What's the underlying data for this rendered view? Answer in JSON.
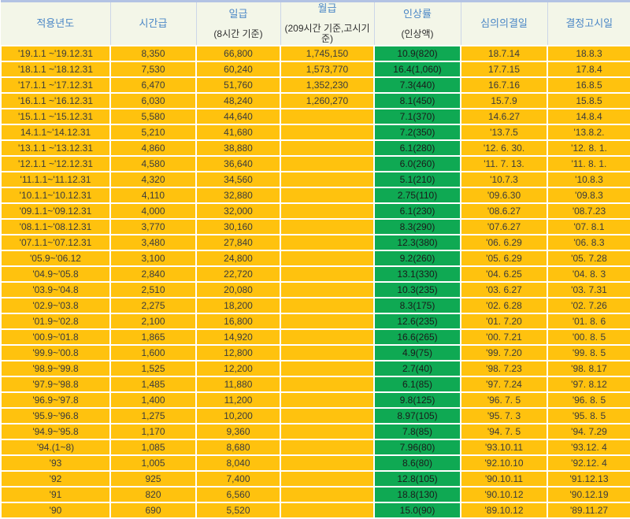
{
  "colors": {
    "row_bg": "#ffc20e",
    "rate_col_bg": "#0fa953",
    "header_bg": "#f3f6e8",
    "header_text": "#4b87c6",
    "cell_text": "#3b3b3b",
    "grid_border": "#ffffff",
    "header_top_border": "#b3c3e3"
  },
  "chart_data": {
    "type": "table",
    "columns": [
      {
        "label": "적용년도",
        "sub": ""
      },
      {
        "label": "시간급",
        "sub": ""
      },
      {
        "label": "일급",
        "sub": "(8시간 기준)"
      },
      {
        "label": "월급",
        "sub": "(209시간 기준,고시기준)"
      },
      {
        "label": "인상률",
        "sub": "(인상액)"
      },
      {
        "label": "심의의결일",
        "sub": ""
      },
      {
        "label": "결정고시일",
        "sub": ""
      }
    ],
    "rows": [
      [
        "'19.1.1 ~'19.12.31",
        "8,350",
        "66,800",
        "1,745,150",
        "10.9(820)",
        "18.7.14",
        "18.8.3"
      ],
      [
        "'18.1.1 ~'18.12.31",
        "7,530",
        "60,240",
        "1,573,770",
        "16.4(1,060)",
        "17.7.15",
        "17.8.4"
      ],
      [
        "'17.1.1 ~'17.12.31",
        "6,470",
        "51,760",
        "1,352,230",
        "7.3(440)",
        "16.7.16",
        "16.8.5"
      ],
      [
        "'16.1.1 ~'16.12.31",
        "6,030",
        "48,240",
        "1,260,270",
        "8.1(450)",
        "15.7.9",
        "15.8.5"
      ],
      [
        "'15.1.1 ~'15.12.31",
        "5,580",
        "44,640",
        "",
        "7.1(370)",
        "14.6.27",
        "14.8.4"
      ],
      [
        "14.1.1~'14.12.31",
        "5,210",
        "41,680",
        "",
        "7.2(350)",
        "'13.7.5",
        "'13.8.2."
      ],
      [
        "'13.1.1 ~'13.12.31",
        "4,860",
        "38,880",
        "",
        "6.1(280)",
        "'12. 6. 30.",
        "'12. 8. 1."
      ],
      [
        "'12.1.1 ~'12.12.31",
        "4,580",
        "36,640",
        "",
        "6.0(260)",
        "'11. 7. 13.",
        "'11. 8. 1."
      ],
      [
        "'11.1.1~'11.12.31",
        "4,320",
        "34,560",
        "",
        "5.1(210)",
        "'10.7.3",
        "'10.8.3"
      ],
      [
        "'10.1.1~'10.12.31",
        "4,110",
        "32,880",
        "",
        "2.75(110)",
        "'09.6.30",
        "'09.8.3"
      ],
      [
        "'09.1.1~'09.12.31",
        "4,000",
        "32,000",
        "",
        "6.1(230)",
        "'08.6.27",
        "'08.7.23"
      ],
      [
        "'08.1.1~'08.12.31",
        "3,770",
        "30,160",
        "",
        "8.3(290)",
        "'07.6.27",
        "'07. 8.1"
      ],
      [
        "'07.1.1~'07.12.31",
        "3,480",
        "27,840",
        "",
        "12.3(380)",
        "'06. 6.29",
        "'06. 8.3"
      ],
      [
        "'05.9~'06.12",
        "3,100",
        "24,800",
        "",
        "9.2(260)",
        "'05. 6.29",
        "'05. 7.28"
      ],
      [
        "'04.9~'05.8",
        "2,840",
        "22,720",
        "",
        "13.1(330)",
        "'04. 6.25",
        "'04. 8. 3"
      ],
      [
        "'03.9~'04.8",
        "2,510",
        "20,080",
        "",
        "10.3(235)",
        "'03. 6.27",
        "'03. 7.31"
      ],
      [
        "'02.9~'03.8",
        "2,275",
        "18,200",
        "",
        "8.3(175)",
        "'02. 6.28",
        "'02. 7.26"
      ],
      [
        "'01.9~'02.8",
        "2,100",
        "16,800",
        "",
        "12.6(235)",
        "'01. 7.20",
        "'01. 8. 6"
      ],
      [
        "'00.9~'01.8",
        "1,865",
        "14,920",
        "",
        "16.6(265)",
        "'00. 7.21",
        "'00. 8. 5"
      ],
      [
        "'99.9~'00.8",
        "1,600",
        "12,800",
        "",
        "4.9(75)",
        "'99. 7.20",
        "'99. 8. 5"
      ],
      [
        "'98.9~'99.8",
        "1,525",
        "12,200",
        "",
        "2.7(40)",
        "'98. 7.23",
        "'98. 8.17"
      ],
      [
        "'97.9~'98.8",
        "1,485",
        "11,880",
        "",
        "6.1(85)",
        "'97. 7.24",
        "'97. 8.12"
      ],
      [
        "'96.9~'97.8",
        "1,400",
        "11,200",
        "",
        "9.8(125)",
        "'96. 7. 5",
        "'96. 8. 5"
      ],
      [
        "'95.9~'96.8",
        "1,275",
        "10,200",
        "",
        "8.97(105)",
        "'95. 7. 3",
        "'95. 8. 5"
      ],
      [
        "'94.9~'95.8",
        "1,170",
        "9,360",
        "",
        "7.8(85)",
        "'94. 7. 5",
        "'94. 7.29"
      ],
      [
        "'94.(1~8)",
        "1,085",
        "8,680",
        "",
        "7.96(80)",
        "'93.10.11",
        "'93.12. 4"
      ],
      [
        "'93",
        "1,005",
        "8,040",
        "",
        "8.6(80)",
        "'92.10.10",
        "'92.12. 4"
      ],
      [
        "'92",
        "925",
        "7,400",
        "",
        "12.8(105)",
        "'90.10.11",
        "'91.12.13"
      ],
      [
        "'91",
        "820",
        "6,560",
        "",
        "18.8(130)",
        "'90.10.12",
        "'90.12.19"
      ],
      [
        "'90",
        "690",
        "5,520",
        "",
        "15.0(90)",
        "'89.10.12",
        "'89.11.27"
      ]
    ]
  }
}
